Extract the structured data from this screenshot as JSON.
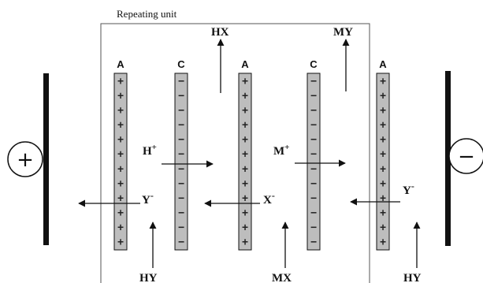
{
  "diagram": {
    "title": "Repeating unit",
    "electrodes": {
      "anode_sign": "+",
      "cathode_sign": "−"
    },
    "membranes": [
      {
        "label": "A",
        "sign": "+"
      },
      {
        "label": "C",
        "sign": "−"
      },
      {
        "label": "A",
        "sign": "+"
      },
      {
        "label": "C",
        "sign": "−"
      },
      {
        "label": "A",
        "sign": "+"
      }
    ],
    "flows": {
      "feed_left": "HY",
      "feed_middle": "MX",
      "feed_right": "HY",
      "product_acid": "HX",
      "product_base": "MY"
    },
    "ions": {
      "h_plus": "H",
      "h_plus_sup": "+",
      "m_plus": "M",
      "m_plus_sup": "+",
      "y_minus_left": "Y",
      "y_minus_left_sup": "-",
      "x_minus": "X",
      "x_minus_sup": "-",
      "y_minus_right": "Y",
      "y_minus_right_sup": "-"
    },
    "colors": {
      "membrane_fill": "#bdbdbd",
      "stroke": "#111111",
      "box": "#555555"
    }
  }
}
